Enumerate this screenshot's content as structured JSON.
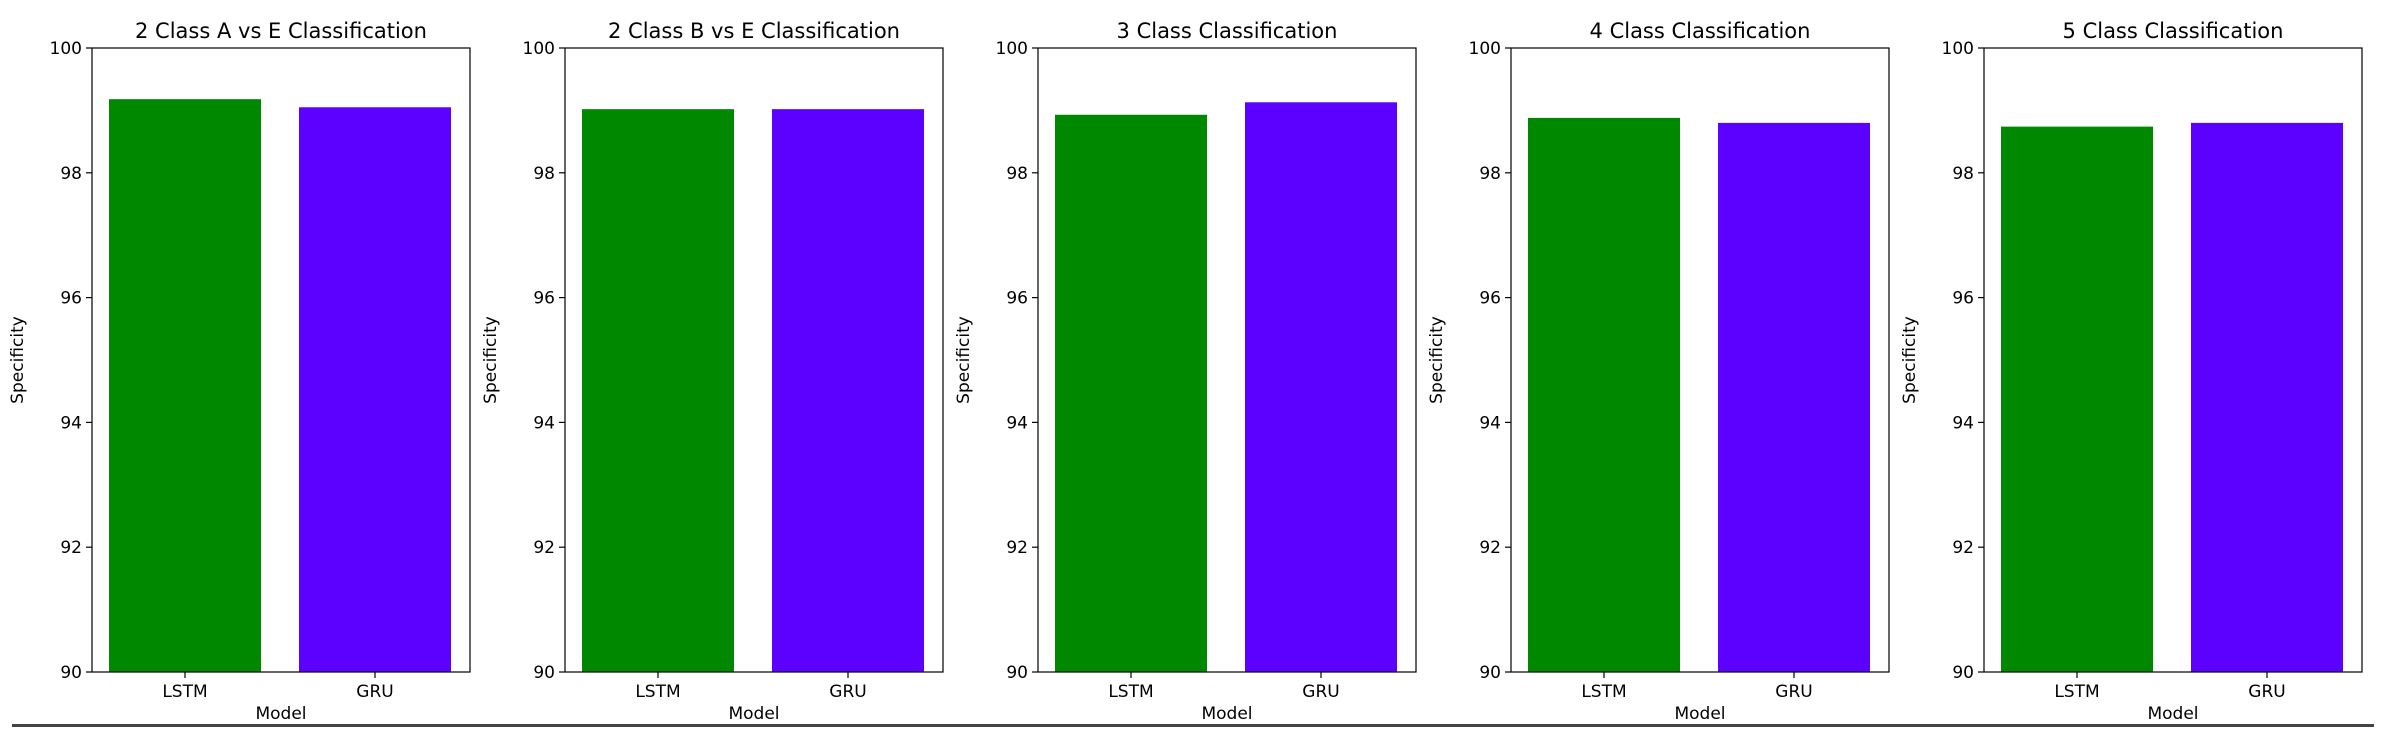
{
  "chart_data": [
    {
      "type": "bar",
      "title": "2 Class A vs E Classification",
      "xlabel": "Model",
      "ylabel": "Specificity",
      "categories": [
        "LSTM",
        "GRU"
      ],
      "values": [
        99.18,
        99.05
      ],
      "colors": [
        "#008800",
        "#5c00ff"
      ],
      "ylim": [
        90,
        100
      ],
      "yticks": [
        90,
        92,
        94,
        96,
        98,
        100
      ],
      "grid": false
    },
    {
      "type": "bar",
      "title": "2 Class B vs E Classification",
      "xlabel": "Model",
      "ylabel": "Specificity",
      "categories": [
        "LSTM",
        "GRU"
      ],
      "values": [
        99.02,
        99.02
      ],
      "colors": [
        "#008800",
        "#5c00ff"
      ],
      "ylim": [
        90,
        100
      ],
      "yticks": [
        90,
        92,
        94,
        96,
        98,
        100
      ],
      "grid": false
    },
    {
      "type": "bar",
      "title": "3 Class Classification",
      "xlabel": "Model",
      "ylabel": "Specificity",
      "categories": [
        "LSTM",
        "GRU"
      ],
      "values": [
        98.93,
        99.13
      ],
      "colors": [
        "#008800",
        "#5c00ff"
      ],
      "ylim": [
        90,
        100
      ],
      "yticks": [
        90,
        92,
        94,
        96,
        98,
        100
      ],
      "grid": false
    },
    {
      "type": "bar",
      "title": "4 Class Classification",
      "xlabel": "Model",
      "ylabel": "Specificity",
      "categories": [
        "LSTM",
        "GRU"
      ],
      "values": [
        98.88,
        98.8
      ],
      "colors": [
        "#008800",
        "#5c00ff"
      ],
      "ylim": [
        90,
        100
      ],
      "yticks": [
        90,
        92,
        94,
        96,
        98,
        100
      ],
      "grid": false
    },
    {
      "type": "bar",
      "title": "5 Class Classification",
      "xlabel": "Model",
      "ylabel": "Specificity",
      "categories": [
        "LSTM",
        "GRU"
      ],
      "values": [
        98.74,
        98.8
      ],
      "colors": [
        "#008800",
        "#5c00ff"
      ],
      "ylim": [
        90,
        100
      ],
      "yticks": [
        90,
        92,
        94,
        96,
        98,
        100
      ],
      "grid": false
    }
  ]
}
